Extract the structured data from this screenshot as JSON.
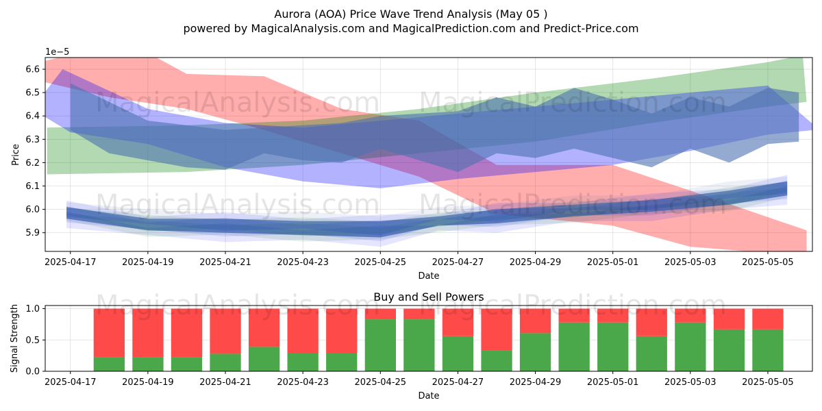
{
  "title_line1": "Aurora (AOA) Price Wave Trend Analysis (May 05 )",
  "title_line2": "powered by MagicalAnalysis.com and MagicalPrediction.com and Predict-Price.com",
  "watermarks": [
    "MagicalAnalysis.com",
    "MagicalPrediction.com"
  ],
  "chart_data": [
    {
      "type": "area",
      "xlabel": "Date",
      "ylabel": "Price",
      "y_offset_label": "1e−5",
      "ylim": [
        5.82,
        6.65
      ],
      "grid": true,
      "yticks": [
        5.9,
        6.0,
        6.1,
        6.2,
        6.3,
        6.4,
        6.5,
        6.6
      ],
      "xticks": [
        "2025-04-17",
        "2025-04-19",
        "2025-04-21",
        "2025-04-23",
        "2025-04-25",
        "2025-04-27",
        "2025-04-29",
        "2025-05-01",
        "2025-05-03",
        "2025-05-05"
      ],
      "xrange_days": [
        -0.65,
        19.15
      ],
      "colors": {
        "red": "#ff0000",
        "green": "#008000",
        "blue": "#0000ff",
        "steel": "#4c72b0"
      },
      "trend_bands": [
        {
          "color": "red",
          "opacity": 0.32,
          "upper": [
            [
              -0.8,
              6.63
            ],
            [
              0.2,
              6.67
            ],
            [
              2.0,
              6.67
            ],
            [
              3.0,
              6.58
            ],
            [
              5.0,
              6.57
            ],
            [
              7.0,
              6.43
            ],
            [
              9.0,
              6.38
            ],
            [
              11.0,
              6.19
            ],
            [
              14.0,
              6.19
            ],
            [
              16.0,
              6.08
            ],
            [
              19.0,
              5.91
            ]
          ],
          "lower": [
            [
              19.0,
              5.8
            ],
            [
              16.0,
              5.84
            ],
            [
              14.0,
              5.93
            ],
            [
              11.0,
              5.98
            ],
            [
              9.0,
              6.14
            ],
            [
              7.0,
              6.24
            ],
            [
              5.0,
              6.34
            ],
            [
              3.0,
              6.43
            ],
            [
              1.0,
              6.48
            ],
            [
              -0.8,
              6.55
            ]
          ]
        },
        {
          "color": "green",
          "opacity": 0.3,
          "upper": [
            [
              -0.6,
              6.35
            ],
            [
              3.0,
              6.36
            ],
            [
              6.0,
              6.38
            ],
            [
              9.0,
              6.43
            ],
            [
              12.0,
              6.5
            ],
            [
              15.0,
              6.56
            ],
            [
              18.0,
              6.63
            ],
            [
              18.9,
              6.66
            ]
          ],
          "lower": [
            [
              19.0,
              6.46
            ],
            [
              18.0,
              6.44
            ],
            [
              15.0,
              6.37
            ],
            [
              12.0,
              6.29
            ],
            [
              9.0,
              6.24
            ],
            [
              6.0,
              6.19
            ],
            [
              3.0,
              6.16
            ],
            [
              -0.6,
              6.15
            ]
          ]
        },
        {
          "color": "blue",
          "opacity": 0.3,
          "upper": [
            [
              -0.9,
              6.45
            ],
            [
              -0.2,
              6.6
            ],
            [
              2.0,
              6.43
            ],
            [
              4.0,
              6.37
            ],
            [
              6.0,
              6.35
            ],
            [
              8.0,
              6.38
            ],
            [
              10.0,
              6.41
            ],
            [
              12.0,
              6.44
            ],
            [
              14.0,
              6.47
            ],
            [
              16.0,
              6.5
            ],
            [
              18.0,
              6.53
            ],
            [
              19.2,
              6.36
            ]
          ],
          "lower": [
            [
              19.2,
              6.34
            ],
            [
              18.0,
              6.32
            ],
            [
              16.0,
              6.25
            ],
            [
              14.0,
              6.19
            ],
            [
              12.0,
              6.16
            ],
            [
              10.0,
              6.13
            ],
            [
              8.0,
              6.09
            ],
            [
              6.0,
              6.12
            ],
            [
              4.0,
              6.18
            ],
            [
              2.0,
              6.28
            ],
            [
              0.0,
              6.33
            ],
            [
              -0.9,
              6.42
            ]
          ]
        },
        {
          "color": "steel",
          "opacity": 0.72,
          "upper": [
            [
              -0.1,
              6.01
            ],
            [
              2.0,
              5.96
            ],
            [
              4.0,
              5.96
            ],
            [
              6.0,
              5.95
            ],
            [
              8.0,
              5.95
            ],
            [
              9.5,
              5.97
            ],
            [
              11.0,
              6.0
            ],
            [
              13.0,
              6.02
            ],
            [
              15.0,
              6.04
            ],
            [
              17.0,
              6.08
            ],
            [
              18.5,
              6.12
            ]
          ],
          "lower": [
            [
              18.5,
              6.06
            ],
            [
              17.0,
              6.02
            ],
            [
              15.0,
              5.99
            ],
            [
              13.0,
              5.97
            ],
            [
              11.0,
              5.94
            ],
            [
              9.5,
              5.93
            ],
            [
              8.0,
              5.88
            ],
            [
              6.0,
              5.89
            ],
            [
              4.0,
              5.9
            ],
            [
              2.0,
              5.91
            ],
            [
              -0.1,
              5.96
            ]
          ]
        }
      ],
      "wave_bands": [
        {
          "color": "steel",
          "opacity": 0.6,
          "upper": [
            [
              0.0,
              6.34
            ],
            [
              1.0,
              6.24
            ],
            [
              3.0,
              6.18
            ],
            [
              4.0,
              6.17
            ],
            [
              5.0,
              6.24
            ],
            [
              6.0,
              6.21
            ],
            [
              7.0,
              6.2
            ],
            [
              8.0,
              6.26
            ],
            [
              9.0,
              6.21
            ],
            [
              10.0,
              6.16
            ],
            [
              11.0,
              6.24
            ],
            [
              12.0,
              6.22
            ],
            [
              13.0,
              6.26
            ],
            [
              14.0,
              6.22
            ],
            [
              15.0,
              6.18
            ],
            [
              16.0,
              6.26
            ],
            [
              17.0,
              6.2
            ],
            [
              18.0,
              6.28
            ],
            [
              18.8,
              6.29
            ]
          ],
          "lower": [
            [
              18.8,
              6.5
            ],
            [
              18.0,
              6.52
            ],
            [
              17.0,
              6.44
            ],
            [
              16.0,
              6.48
            ],
            [
              15.0,
              6.41
            ],
            [
              14.0,
              6.47
            ],
            [
              13.0,
              6.52
            ],
            [
              12.0,
              6.44
            ],
            [
              11.0,
              6.48
            ],
            [
              10.0,
              6.42
            ],
            [
              9.0,
              6.41
            ],
            [
              8.0,
              6.4
            ],
            [
              7.0,
              6.37
            ],
            [
              6.0,
              6.36
            ],
            [
              4.0,
              6.34
            ],
            [
              2.0,
              6.38
            ],
            [
              0.0,
              6.54
            ]
          ]
        }
      ],
      "noise_bands": 6
    },
    {
      "type": "bar",
      "title": "Buy and Sell Powers",
      "xlabel": "Date",
      "ylabel": "Signal Strength",
      "ylim": [
        0,
        1.05
      ],
      "yticks": [
        0.0,
        0.5,
        1.0
      ],
      "xticks": [
        "2025-04-17",
        "2025-04-19",
        "2025-04-21",
        "2025-04-23",
        "2025-04-25",
        "2025-04-27",
        "2025-04-29",
        "2025-05-01",
        "2025-05-03",
        "2025-05-05"
      ],
      "xrange_days": [
        -0.65,
        19.15
      ],
      "categories": [
        "2025-04-18",
        "2025-04-19",
        "2025-04-20",
        "2025-04-21",
        "2025-04-22",
        "2025-04-23",
        "2025-04-24",
        "2025-04-25",
        "2025-04-26",
        "2025-04-27",
        "2025-04-28",
        "2025-04-29",
        "2025-04-30",
        "2025-05-01",
        "2025-05-02",
        "2025-05-03",
        "2025-05-04",
        "2025-05-05"
      ],
      "series": [
        {
          "color": "#4aa84a",
          "values": [
            0.22,
            0.22,
            0.22,
            0.28,
            0.39,
            0.29,
            0.29,
            0.83,
            0.83,
            0.56,
            0.33,
            0.61,
            0.78,
            0.78,
            0.56,
            0.78,
            0.67,
            0.67
          ]
        },
        {
          "color": "#ff4a4a",
          "values": [
            0.78,
            0.78,
            0.78,
            0.72,
            0.61,
            0.71,
            0.71,
            0.17,
            0.17,
            0.44,
            0.67,
            0.39,
            0.22,
            0.22,
            0.44,
            0.22,
            0.33,
            0.33
          ]
        }
      ]
    }
  ]
}
